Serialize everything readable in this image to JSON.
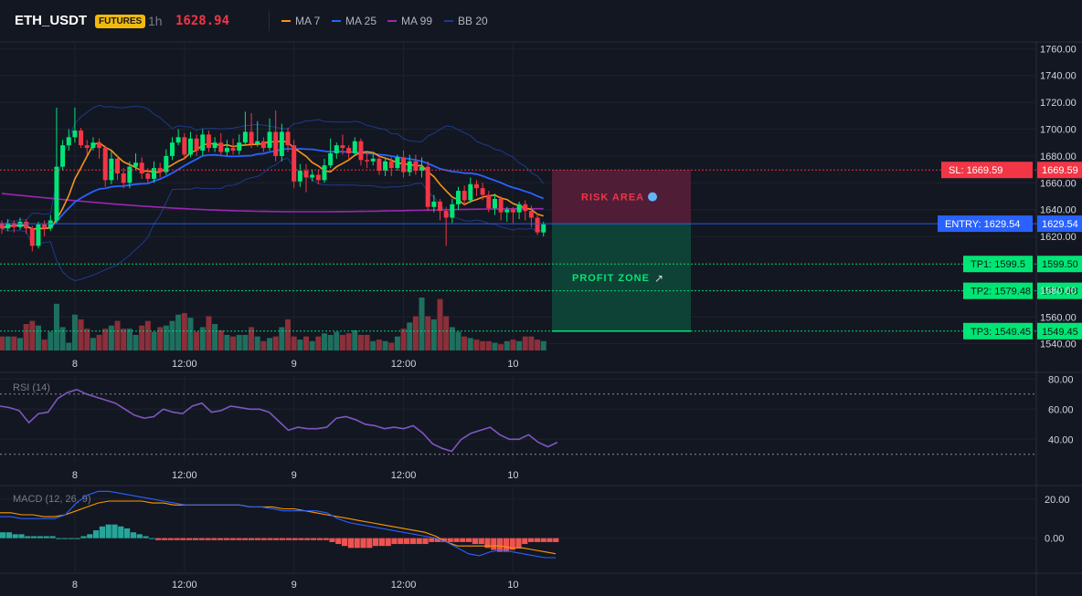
{
  "header": {
    "symbol": "ETH_USDT",
    "badge": "FUTURES",
    "timeframe": "1h",
    "last_price": "1628.94",
    "legend": [
      {
        "label": "MA 7",
        "color": "#f7931a"
      },
      {
        "label": "MA 25",
        "color": "#2962ff"
      },
      {
        "label": "MA 99",
        "color": "#9c27b0"
      },
      {
        "label": "BB 20",
        "color": "#1e3a8a"
      }
    ]
  },
  "levels": {
    "sl": {
      "tag": "SL: 1669.59",
      "axis": "1669.59",
      "price": 1669.59,
      "color": "#f23645"
    },
    "entry": {
      "tag": "ENTRY: 1629.54",
      "axis": "1629.54",
      "price": 1629.54,
      "color": "#2962ff"
    },
    "tp1": {
      "tag": "TP1: 1599.5",
      "axis": "1599.50",
      "price": 1599.5,
      "color": "#00e676"
    },
    "tp2": {
      "tag": "TP2: 1579.48",
      "axis": "1579.48",
      "price": 1579.48,
      "color": "#00e676"
    },
    "tp3": {
      "tag": "TP3: 1549.45",
      "axis": "1549.45",
      "price": 1549.45,
      "color": "#00e676"
    },
    "risk_label": "RISK AREA",
    "profit_label": "PROFIT ZONE"
  },
  "panes": {
    "rsi_title": "RSI (14)",
    "macd_title": "MACD (12, 26, 9)"
  },
  "chart_data": [
    {
      "type": "candlestick",
      "title": "ETH_USDT",
      "x_labels": [
        "8",
        "12:00",
        "9",
        "12:00",
        "10"
      ],
      "x_label_index": [
        12,
        30,
        48,
        66,
        84
      ],
      "ylim": [
        1535,
        1765
      ],
      "y_ticks": [
        "1760.00",
        "1740.00",
        "1720.00",
        "1700.00",
        "1680.00",
        "1660.00",
        "1640.00",
        "1620.00",
        "1580.00",
        "1560.00",
        "1540.00"
      ],
      "y_tick_values": [
        1760,
        1740,
        1720,
        1700,
        1680,
        1660,
        1640,
        1620,
        1580,
        1560,
        1540
      ],
      "candles": [
        [
          1630,
          1626,
          1632,
          1622
        ],
        [
          1626,
          1630,
          1633,
          1624
        ],
        [
          1630,
          1627,
          1632,
          1623
        ],
        [
          1627,
          1631,
          1634,
          1625
        ],
        [
          1631,
          1626,
          1633,
          1622
        ],
        [
          1626,
          1613,
          1628,
          1609
        ],
        [
          1613,
          1629,
          1631,
          1611
        ],
        [
          1629,
          1626,
          1632,
          1620
        ],
        [
          1626,
          1632,
          1636,
          1624
        ],
        [
          1632,
          1672,
          1716,
          1630
        ],
        [
          1672,
          1688,
          1692,
          1669
        ],
        [
          1688,
          1694,
          1700,
          1684
        ],
        [
          1694,
          1699,
          1716,
          1690
        ],
        [
          1699,
          1688,
          1701,
          1686
        ],
        [
          1688,
          1686,
          1692,
          1681
        ],
        [
          1686,
          1690,
          1694,
          1684
        ],
        [
          1690,
          1686,
          1693,
          1678
        ],
        [
          1686,
          1662,
          1688,
          1657
        ],
        [
          1662,
          1678,
          1684,
          1659
        ],
        [
          1678,
          1667,
          1681,
          1662
        ],
        [
          1667,
          1660,
          1671,
          1656
        ],
        [
          1660,
          1672,
          1676,
          1656
        ],
        [
          1672,
          1675,
          1682,
          1669
        ],
        [
          1675,
          1667,
          1679,
          1663
        ],
        [
          1667,
          1663,
          1671,
          1660
        ],
        [
          1663,
          1671,
          1676,
          1660
        ],
        [
          1671,
          1668,
          1675,
          1664
        ],
        [
          1668,
          1680,
          1685,
          1666
        ],
        [
          1680,
          1690,
          1694,
          1677
        ],
        [
          1690,
          1694,
          1700,
          1688
        ],
        [
          1694,
          1681,
          1697,
          1678
        ],
        [
          1681,
          1693,
          1698,
          1679
        ],
        [
          1693,
          1684,
          1696,
          1680
        ],
        [
          1684,
          1696,
          1700,
          1680
        ],
        [
          1696,
          1686,
          1699,
          1683
        ],
        [
          1686,
          1690,
          1694,
          1683
        ],
        [
          1690,
          1683,
          1697,
          1681
        ],
        [
          1683,
          1686,
          1692,
          1680
        ],
        [
          1686,
          1684,
          1693,
          1681
        ],
        [
          1684,
          1690,
          1696,
          1681
        ],
        [
          1690,
          1698,
          1713,
          1688
        ],
        [
          1698,
          1689,
          1712,
          1686
        ],
        [
          1689,
          1691,
          1706,
          1687
        ],
        [
          1691,
          1686,
          1694,
          1683
        ],
        [
          1686,
          1698,
          1708,
          1684
        ],
        [
          1698,
          1680,
          1714,
          1676
        ],
        [
          1680,
          1698,
          1704,
          1676
        ],
        [
          1698,
          1688,
          1701,
          1683
        ],
        [
          1688,
          1661,
          1692,
          1656
        ],
        [
          1661,
          1669,
          1674,
          1657
        ],
        [
          1669,
          1664,
          1674,
          1653
        ],
        [
          1664,
          1666,
          1670,
          1661
        ],
        [
          1666,
          1662,
          1670,
          1659
        ],
        [
          1662,
          1673,
          1678,
          1660
        ],
        [
          1673,
          1682,
          1693,
          1671
        ],
        [
          1682,
          1688,
          1690,
          1678
        ],
        [
          1688,
          1686,
          1696,
          1681
        ],
        [
          1686,
          1682,
          1688,
          1678
        ],
        [
          1682,
          1691,
          1694,
          1680
        ],
        [
          1691,
          1677,
          1693,
          1673
        ],
        [
          1677,
          1676,
          1682,
          1671
        ],
        [
          1676,
          1678,
          1683,
          1673
        ],
        [
          1678,
          1669,
          1680,
          1666
        ],
        [
          1669,
          1676,
          1679,
          1665
        ],
        [
          1676,
          1671,
          1679,
          1665
        ],
        [
          1671,
          1679,
          1681,
          1669
        ],
        [
          1679,
          1668,
          1684,
          1664
        ],
        [
          1668,
          1676,
          1681,
          1665
        ],
        [
          1676,
          1669,
          1681,
          1666
        ],
        [
          1669,
          1672,
          1679,
          1664
        ],
        [
          1672,
          1642,
          1676,
          1639
        ],
        [
          1642,
          1646,
          1651,
          1638
        ],
        [
          1646,
          1639,
          1648,
          1632
        ],
        [
          1639,
          1634,
          1642,
          1613
        ],
        [
          1634,
          1644,
          1648,
          1630
        ],
        [
          1644,
          1654,
          1657,
          1640
        ],
        [
          1654,
          1647,
          1658,
          1643
        ],
        [
          1647,
          1659,
          1664,
          1645
        ],
        [
          1659,
          1656,
          1662,
          1650
        ],
        [
          1656,
          1651,
          1660,
          1647
        ],
        [
          1651,
          1641,
          1654,
          1638
        ],
        [
          1641,
          1648,
          1652,
          1636
        ],
        [
          1648,
          1638,
          1650,
          1632
        ],
        [
          1638,
          1640,
          1642,
          1631
        ],
        [
          1640,
          1638,
          1642,
          1630
        ],
        [
          1638,
          1644,
          1646,
          1633
        ],
        [
          1644,
          1639,
          1647,
          1632
        ],
        [
          1639,
          1634,
          1643,
          1627
        ],
        [
          1634,
          1623,
          1637,
          1621
        ],
        [
          1623,
          1629,
          1631,
          1620
        ]
      ],
      "volume": [
        9,
        9,
        9,
        8,
        17,
        19,
        16,
        7,
        12,
        30,
        15,
        5,
        23,
        20,
        14,
        8,
        10,
        14,
        16,
        19,
        14,
        14,
        10,
        16,
        19,
        12,
        15,
        16,
        19,
        23,
        24,
        21,
        12,
        15,
        22,
        17,
        13,
        10,
        9,
        10,
        10,
        15,
        9,
        6,
        8,
        9,
        15,
        20,
        9,
        7,
        9,
        6,
        9,
        11,
        10,
        12,
        10,
        11,
        13,
        10,
        10,
        6,
        7,
        6,
        5,
        9,
        14,
        18,
        22,
        34,
        22,
        20,
        33,
        22,
        15,
        12,
        9,
        8,
        7,
        6,
        6,
        5,
        4,
        6,
        7,
        6,
        9,
        9,
        7,
        6
      ]
    },
    {
      "type": "line",
      "title": "RSI (14)",
      "x_labels": [
        "8",
        "12:00",
        "9",
        "12:00",
        "10"
      ],
      "ylim": [
        25,
        82
      ],
      "y_ticks": [
        "80.00",
        "60.00",
        "40.00"
      ],
      "y_tick_values": [
        80,
        60,
        40
      ],
      "guides": [
        70,
        30
      ],
      "series": [
        {
          "values": [
            62,
            61,
            59,
            51,
            57,
            58,
            67,
            71,
            73,
            70,
            68,
            66,
            64,
            60,
            56,
            54,
            55,
            60,
            58,
            57,
            62,
            64,
            58,
            59,
            62,
            61,
            60,
            60,
            58,
            52,
            46,
            48,
            47,
            47,
            48,
            54,
            55,
            53,
            50,
            49,
            47,
            48,
            47,
            49,
            44,
            37,
            34,
            32,
            40,
            44,
            46,
            48,
            43,
            40,
            40,
            43,
            38,
            35,
            38
          ],
          "color": "#7e57c2"
        }
      ]
    },
    {
      "type": "bar+line",
      "title": "MACD (12, 26, 9)",
      "x_labels": [
        "8",
        "12:00",
        "9",
        "12:00",
        "10"
      ],
      "ylim": [
        -17,
        26
      ],
      "y_ticks": [
        "20.00",
        "0.00"
      ],
      "y_tick_values": [
        20,
        0
      ],
      "series": [
        {
          "values": [
            13,
            13,
            12,
            12,
            11,
            11,
            12,
            14,
            16,
            18,
            19,
            19,
            19,
            19,
            18,
            18,
            17,
            17,
            17,
            17,
            17,
            17,
            17,
            16,
            16,
            16,
            15,
            15,
            14,
            13,
            12,
            11,
            10,
            9,
            8,
            7,
            6,
            5,
            4,
            3,
            1,
            -2,
            -4,
            -4,
            -4,
            -4,
            -4,
            -5,
            -5,
            -6,
            -7,
            -8
          ],
          "color": "#ff9800"
        },
        {
          "values": [
            11,
            11,
            10,
            10,
            10,
            10,
            12,
            18,
            22,
            24,
            24,
            23,
            22,
            21,
            20,
            19,
            18,
            17,
            17,
            17,
            17,
            17,
            17,
            16,
            16,
            15,
            14,
            14,
            14,
            14,
            13,
            10,
            8,
            7,
            6,
            5,
            4,
            3,
            2,
            1,
            0,
            -2,
            -5,
            -8,
            -9,
            -7,
            -6,
            -7,
            -8,
            -9,
            -10,
            -10
          ],
          "color": "#2962ff"
        }
      ],
      "histogram": [
        3,
        3,
        2,
        2,
        1,
        1,
        1,
        1,
        1,
        0,
        0,
        0,
        0,
        1,
        2,
        4,
        6,
        7,
        7,
        6,
        5,
        3,
        2,
        1,
        0,
        -1,
        -1,
        -1,
        -1,
        -1,
        -1,
        -1,
        -1,
        -1,
        -1,
        -1,
        -1,
        -1,
        -1,
        -1,
        -1,
        -1,
        -1,
        -1,
        -1,
        -1,
        -1,
        -1,
        -1,
        -1,
        -1,
        -1,
        -1,
        -2,
        -3,
        -4,
        -5,
        -5,
        -5,
        -5,
        -4,
        -4,
        -4,
        -3,
        -3,
        -3,
        -3,
        -3,
        -3,
        -2,
        -2,
        -2,
        -2,
        -2,
        -2,
        -2,
        -3,
        -3,
        -5,
        -6,
        -7,
        -7,
        -6,
        -5,
        -3,
        -2,
        -2,
        -2,
        -2,
        -2
      ]
    }
  ]
}
